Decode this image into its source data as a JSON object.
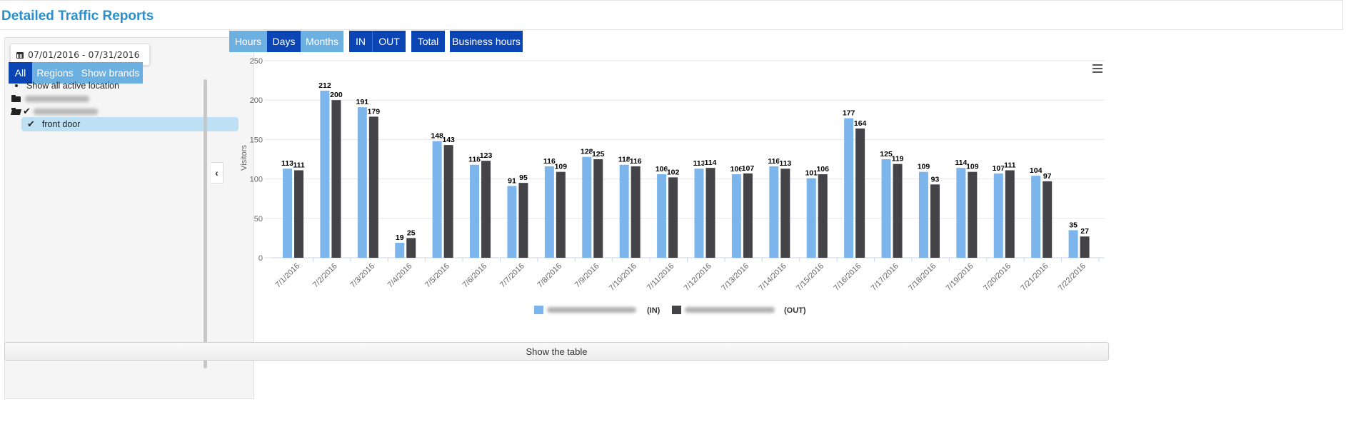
{
  "header": {
    "title": "Detailed Traffic Reports"
  },
  "sidebar": {
    "date_range": "07/01/2016 - 07/31/2016",
    "tabs": [
      "All",
      "Regions",
      "Show brands"
    ],
    "tree": {
      "show_all": "Show all active location",
      "selected_item": "front door"
    }
  },
  "toolbar": {
    "granularity": [
      "Hours",
      "Days",
      "Months"
    ],
    "direction": [
      "IN",
      "OUT"
    ],
    "total": "Total",
    "business_hours": "Business hours"
  },
  "footer": {
    "show_table": "Show the table"
  },
  "colors": {
    "in": "#7cb5ec",
    "out": "#434348",
    "accent": "#0b45b4"
  },
  "chart_data": {
    "type": "bar",
    "ylabel": "Visitors",
    "ylim": [
      0,
      250
    ],
    "yticks": [
      0,
      50,
      100,
      150,
      200,
      250
    ],
    "grid": true,
    "legend_position": "bottom",
    "categories": [
      "7/1/2016",
      "7/2/2016",
      "7/3/2016",
      "7/4/2016",
      "7/5/2016",
      "7/6/2016",
      "7/7/2016",
      "7/8/2016",
      "7/9/2016",
      "7/10/2016",
      "7/11/2016",
      "7/12/2016",
      "7/13/2016",
      "7/14/2016",
      "7/15/2016",
      "7/16/2016",
      "7/17/2016",
      "7/18/2016",
      "7/19/2016",
      "7/20/2016",
      "7/21/2016",
      "7/22/2016"
    ],
    "series": [
      {
        "name": "(IN)",
        "color": "#7cb5ec",
        "values": [
          113,
          212,
          191,
          19,
          148,
          118,
          91,
          116,
          128,
          118,
          106,
          113,
          106,
          116,
          101,
          177,
          125,
          109,
          114,
          107,
          104,
          35
        ]
      },
      {
        "name": "(OUT)",
        "color": "#434348",
        "values": [
          111,
          200,
          179,
          25,
          143,
          123,
          95,
          109,
          125,
          116,
          102,
          114,
          107,
          113,
          106,
          164,
          119,
          93,
          109,
          111,
          97,
          27
        ]
      }
    ]
  }
}
